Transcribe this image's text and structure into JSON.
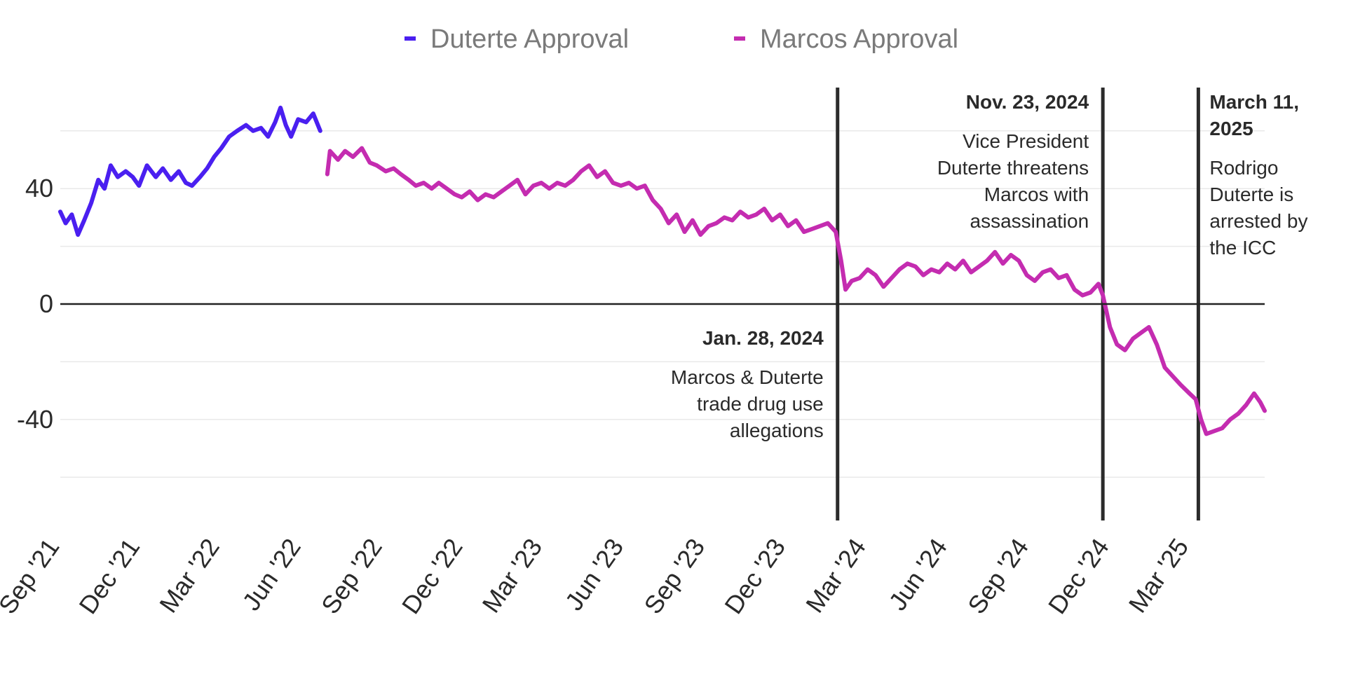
{
  "chart_data": {
    "type": "line",
    "title": "",
    "xlabel": "",
    "ylabel": "",
    "legend_position": "top-center",
    "grid": true,
    "x_range": [
      "2021-09-01",
      "2025-05-25"
    ],
    "ylim": [
      -75,
      75
    ],
    "y_ticks": [
      {
        "value": 40,
        "label": "40"
      },
      {
        "value": 0,
        "label": "0"
      },
      {
        "value": -40,
        "label": "-40"
      }
    ],
    "x_ticks": [
      {
        "date": "2021-09-01",
        "label": "Sep '21"
      },
      {
        "date": "2021-12-01",
        "label": "Dec '21"
      },
      {
        "date": "2022-03-01",
        "label": "Mar '22"
      },
      {
        "date": "2022-06-01",
        "label": "Jun '22"
      },
      {
        "date": "2022-09-01",
        "label": "Sep '22"
      },
      {
        "date": "2022-12-01",
        "label": "Dec '22"
      },
      {
        "date": "2023-03-01",
        "label": "Mar '23"
      },
      {
        "date": "2023-06-01",
        "label": "Jun '23"
      },
      {
        "date": "2023-09-01",
        "label": "Sep '23"
      },
      {
        "date": "2023-12-01",
        "label": "Dec '23"
      },
      {
        "date": "2024-03-01",
        "label": "Mar '24"
      },
      {
        "date": "2024-06-01",
        "label": "Jun '24"
      },
      {
        "date": "2024-09-01",
        "label": "Sep '24"
      },
      {
        "date": "2024-12-01",
        "label": "Dec '24"
      },
      {
        "date": "2025-03-01",
        "label": "Mar '25"
      }
    ],
    "series": [
      {
        "name": "Duterte Approval",
        "color": "#4a1ff0",
        "points": [
          [
            "2021-09-01",
            32
          ],
          [
            "2021-09-07",
            28
          ],
          [
            "2021-09-14",
            31
          ],
          [
            "2021-09-21",
            24
          ],
          [
            "2021-09-28",
            29
          ],
          [
            "2021-10-06",
            35
          ],
          [
            "2021-10-14",
            43
          ],
          [
            "2021-10-21",
            40
          ],
          [
            "2021-10-28",
            48
          ],
          [
            "2021-11-05",
            44
          ],
          [
            "2021-11-14",
            46
          ],
          [
            "2021-11-22",
            44
          ],
          [
            "2021-11-29",
            41
          ],
          [
            "2021-12-08",
            48
          ],
          [
            "2021-12-18",
            44
          ],
          [
            "2021-12-26",
            47
          ],
          [
            "2022-01-04",
            43
          ],
          [
            "2022-01-13",
            46
          ],
          [
            "2022-01-21",
            42
          ],
          [
            "2022-01-28",
            41
          ],
          [
            "2022-02-06",
            44
          ],
          [
            "2022-02-14",
            47
          ],
          [
            "2022-02-22",
            51
          ],
          [
            "2022-03-02",
            54
          ],
          [
            "2022-03-11",
            58
          ],
          [
            "2022-03-20",
            60
          ],
          [
            "2022-03-30",
            62
          ],
          [
            "2022-04-07",
            60
          ],
          [
            "2022-04-16",
            61
          ],
          [
            "2022-04-24",
            58
          ],
          [
            "2022-05-02",
            63
          ],
          [
            "2022-05-08",
            68
          ],
          [
            "2022-05-14",
            62
          ],
          [
            "2022-05-20",
            58
          ],
          [
            "2022-05-28",
            64
          ],
          [
            "2022-06-06",
            63
          ],
          [
            "2022-06-14",
            66
          ],
          [
            "2022-06-22",
            60
          ]
        ]
      },
      {
        "name": "Marcos Approval",
        "color": "#c42cb0",
        "points": [
          [
            "2022-06-30",
            45
          ],
          [
            "2022-07-03",
            53
          ],
          [
            "2022-07-12",
            50
          ],
          [
            "2022-07-20",
            53
          ],
          [
            "2022-07-29",
            51
          ],
          [
            "2022-08-08",
            54
          ],
          [
            "2022-08-17",
            49
          ],
          [
            "2022-08-25",
            48
          ],
          [
            "2022-09-04",
            46
          ],
          [
            "2022-09-13",
            47
          ],
          [
            "2022-09-21",
            45
          ],
          [
            "2022-09-30",
            43
          ],
          [
            "2022-10-08",
            41
          ],
          [
            "2022-10-17",
            42
          ],
          [
            "2022-10-26",
            40
          ],
          [
            "2022-11-03",
            42
          ],
          [
            "2022-11-12",
            40
          ],
          [
            "2022-11-21",
            38
          ],
          [
            "2022-11-29",
            37
          ],
          [
            "2022-12-08",
            39
          ],
          [
            "2022-12-17",
            36
          ],
          [
            "2022-12-26",
            38
          ],
          [
            "2023-01-04",
            37
          ],
          [
            "2023-01-13",
            39
          ],
          [
            "2023-01-22",
            41
          ],
          [
            "2023-01-31",
            43
          ],
          [
            "2023-02-09",
            38
          ],
          [
            "2023-02-18",
            41
          ],
          [
            "2023-02-27",
            42
          ],
          [
            "2023-03-08",
            40
          ],
          [
            "2023-03-17",
            42
          ],
          [
            "2023-03-26",
            41
          ],
          [
            "2023-04-04",
            43
          ],
          [
            "2023-04-13",
            46
          ],
          [
            "2023-04-22",
            48
          ],
          [
            "2023-05-01",
            44
          ],
          [
            "2023-05-10",
            46
          ],
          [
            "2023-05-19",
            42
          ],
          [
            "2023-05-28",
            41
          ],
          [
            "2023-06-06",
            42
          ],
          [
            "2023-06-15",
            40
          ],
          [
            "2023-06-24",
            41
          ],
          [
            "2023-07-03",
            36
          ],
          [
            "2023-07-12",
            33
          ],
          [
            "2023-07-21",
            28
          ],
          [
            "2023-07-30",
            31
          ],
          [
            "2023-08-08",
            25
          ],
          [
            "2023-08-17",
            29
          ],
          [
            "2023-08-26",
            24
          ],
          [
            "2023-09-04",
            27
          ],
          [
            "2023-09-13",
            28
          ],
          [
            "2023-09-22",
            30
          ],
          [
            "2023-10-01",
            29
          ],
          [
            "2023-10-10",
            32
          ],
          [
            "2023-10-19",
            30
          ],
          [
            "2023-10-28",
            31
          ],
          [
            "2023-11-06",
            33
          ],
          [
            "2023-11-15",
            29
          ],
          [
            "2023-11-24",
            31
          ],
          [
            "2023-12-03",
            27
          ],
          [
            "2023-12-12",
            29
          ],
          [
            "2023-12-21",
            25
          ],
          [
            "2023-12-30",
            26
          ],
          [
            "2024-01-08",
            27
          ],
          [
            "2024-01-17",
            28
          ],
          [
            "2024-01-26",
            25
          ],
          [
            "2024-02-01",
            15
          ],
          [
            "2024-02-06",
            5
          ],
          [
            "2024-02-13",
            8
          ],
          [
            "2024-02-22",
            9
          ],
          [
            "2024-03-02",
            12
          ],
          [
            "2024-03-11",
            10
          ],
          [
            "2024-03-20",
            6
          ],
          [
            "2024-03-29",
            9
          ],
          [
            "2024-04-07",
            12
          ],
          [
            "2024-04-16",
            14
          ],
          [
            "2024-04-25",
            13
          ],
          [
            "2024-05-04",
            10
          ],
          [
            "2024-05-13",
            12
          ],
          [
            "2024-05-22",
            11
          ],
          [
            "2024-05-31",
            14
          ],
          [
            "2024-06-09",
            12
          ],
          [
            "2024-06-18",
            15
          ],
          [
            "2024-06-27",
            11
          ],
          [
            "2024-07-06",
            13
          ],
          [
            "2024-07-15",
            15
          ],
          [
            "2024-07-24",
            18
          ],
          [
            "2024-08-02",
            14
          ],
          [
            "2024-08-11",
            17
          ],
          [
            "2024-08-20",
            15
          ],
          [
            "2024-08-29",
            10
          ],
          [
            "2024-09-07",
            8
          ],
          [
            "2024-09-16",
            11
          ],
          [
            "2024-09-25",
            12
          ],
          [
            "2024-10-04",
            9
          ],
          [
            "2024-10-13",
            10
          ],
          [
            "2024-10-22",
            5
          ],
          [
            "2024-10-31",
            3
          ],
          [
            "2024-11-09",
            4
          ],
          [
            "2024-11-18",
            7
          ],
          [
            "2024-11-23",
            3
          ],
          [
            "2024-12-01",
            -8
          ],
          [
            "2024-12-09",
            -14
          ],
          [
            "2024-12-18",
            -16
          ],
          [
            "2024-12-27",
            -12
          ],
          [
            "2025-01-05",
            -10
          ],
          [
            "2025-01-14",
            -8
          ],
          [
            "2025-01-23",
            -14
          ],
          [
            "2025-02-01",
            -22
          ],
          [
            "2025-02-10",
            -25
          ],
          [
            "2025-02-19",
            -28
          ],
          [
            "2025-03-01",
            -31
          ],
          [
            "2025-03-08",
            -33
          ],
          [
            "2025-03-14",
            -40
          ],
          [
            "2025-03-20",
            -45
          ],
          [
            "2025-03-29",
            -44
          ],
          [
            "2025-04-07",
            -43
          ],
          [
            "2025-04-16",
            -40
          ],
          [
            "2025-04-25",
            -38
          ],
          [
            "2025-05-04",
            -35
          ],
          [
            "2025-05-13",
            -31
          ],
          [
            "2025-05-20",
            -34
          ],
          [
            "2025-05-25",
            -37
          ]
        ]
      }
    ],
    "annotations": [
      {
        "date": "2024-01-28",
        "title": "Jan. 28, 2024",
        "lines": [
          "Marcos & Duterte",
          "trade drug use",
          "allegations"
        ],
        "placement": "below-left"
      },
      {
        "date": "2024-11-23",
        "title": "Nov. 23, 2024",
        "lines": [
          "Vice President",
          "Duterte threatens",
          "Marcos with",
          "assassination"
        ],
        "placement": "above-left"
      },
      {
        "date": "2025-03-11",
        "title_lines": [
          "March 11,",
          "2025"
        ],
        "lines": [
          "Rodrigo",
          "Duterte is",
          "arrested by",
          "the ICC"
        ],
        "placement": "above-right"
      }
    ]
  }
}
